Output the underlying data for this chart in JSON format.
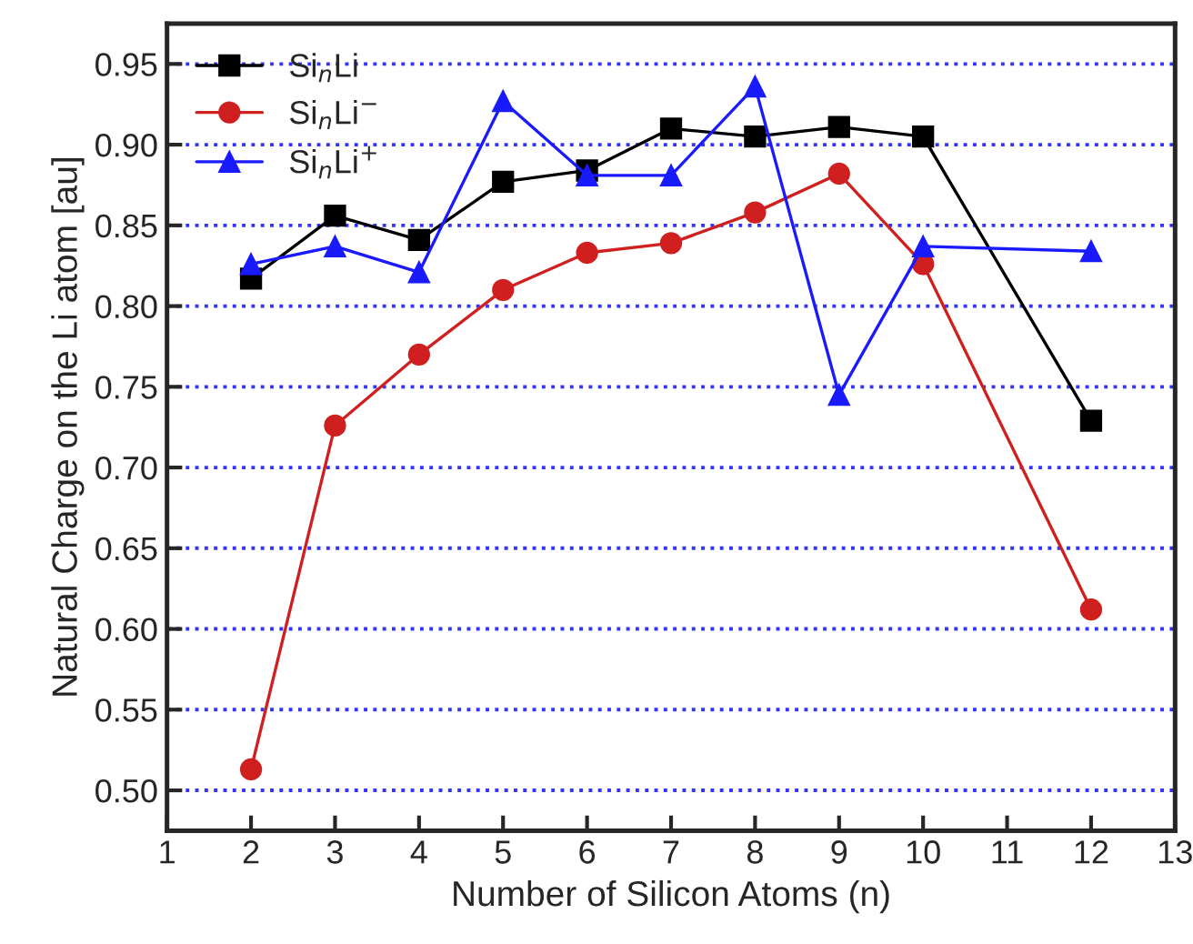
{
  "chart_data": {
    "type": "line",
    "xlabel": "Number of Silicon Atoms (n)",
    "ylabel": "Natural Charge on the Li atom [au]",
    "x": [
      2,
      3,
      4,
      5,
      6,
      7,
      8,
      9,
      10,
      12
    ],
    "series": [
      {
        "name": "Si$_{n}$Li",
        "color": "#000000",
        "marker": "square",
        "values": [
          0.817,
          0.856,
          0.841,
          0.877,
          0.884,
          0.91,
          0.905,
          0.911,
          0.905,
          0.729
        ]
      },
      {
        "name": "Si$_{n}$Li$^{−}$",
        "color": "#d01f1f",
        "marker": "circle",
        "values": [
          0.513,
          0.726,
          0.77,
          0.81,
          0.833,
          0.839,
          0.858,
          0.882,
          0.826,
          0.612
        ]
      },
      {
        "name": "Si$_{n}$Li$^{+}$",
        "color": "#1a1aff",
        "marker": "triangle",
        "values": [
          0.826,
          0.837,
          0.821,
          0.927,
          0.881,
          0.881,
          0.936,
          0.745,
          0.837,
          0.834
        ]
      }
    ],
    "xlim": [
      1,
      13
    ],
    "xticks": [
      1,
      2,
      3,
      4,
      5,
      6,
      7,
      8,
      9,
      10,
      11,
      12,
      13
    ],
    "ylim": [
      0.475,
      0.975
    ],
    "yticks": [
      {
        "value": 0.5,
        "label": "0.50"
      },
      {
        "value": 0.55,
        "label": "0.55"
      },
      {
        "value": 0.6,
        "label": "0.60"
      },
      {
        "value": 0.65,
        "label": "0.65"
      },
      {
        "value": 0.7,
        "label": "0.70"
      },
      {
        "value": 0.75,
        "label": "0.75"
      },
      {
        "value": 0.8,
        "label": "0.80"
      },
      {
        "value": 0.85,
        "label": "0.85"
      },
      {
        "value": 0.9,
        "label": "0.90"
      },
      {
        "value": 0.95,
        "label": "0.95"
      }
    ],
    "grid": "y",
    "legend": "top left",
    "line_style": "solid"
  }
}
